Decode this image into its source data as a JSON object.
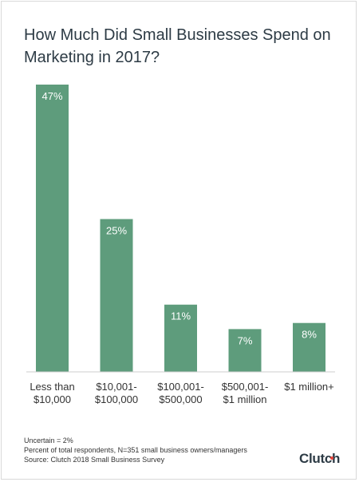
{
  "title": "How Much Did Small Businesses Spend on Marketing in 2017?",
  "chart_data": {
    "type": "bar",
    "title": "How Much Did Small Businesses Spend on Marketing in 2017?",
    "categories": [
      [
        "Less than",
        "$10,000"
      ],
      [
        "$10,001-",
        "$100,000"
      ],
      [
        "$100,001-",
        "$500,000"
      ],
      [
        "$500,001-",
        "$1 million"
      ],
      [
        "$1 million+"
      ]
    ],
    "values": [
      47,
      25,
      11,
      7,
      8
    ],
    "data_labels": [
      "47%",
      "25%",
      "11%",
      "7%",
      "8%"
    ],
    "xlabel": "",
    "ylabel": "",
    "ylim": [
      0,
      47
    ],
    "grid": false,
    "bar_color": "#5e9c7c",
    "axis_color": "#cccccc"
  },
  "footnotes": [
    "Uncertain = 2%",
    "Percent of total respondents, N=351 small business owners/managers",
    "Source: Clutch 2018 Small Business Survey"
  ],
  "brand": {
    "name": "Clutch",
    "dot_color": "#e8453c"
  }
}
